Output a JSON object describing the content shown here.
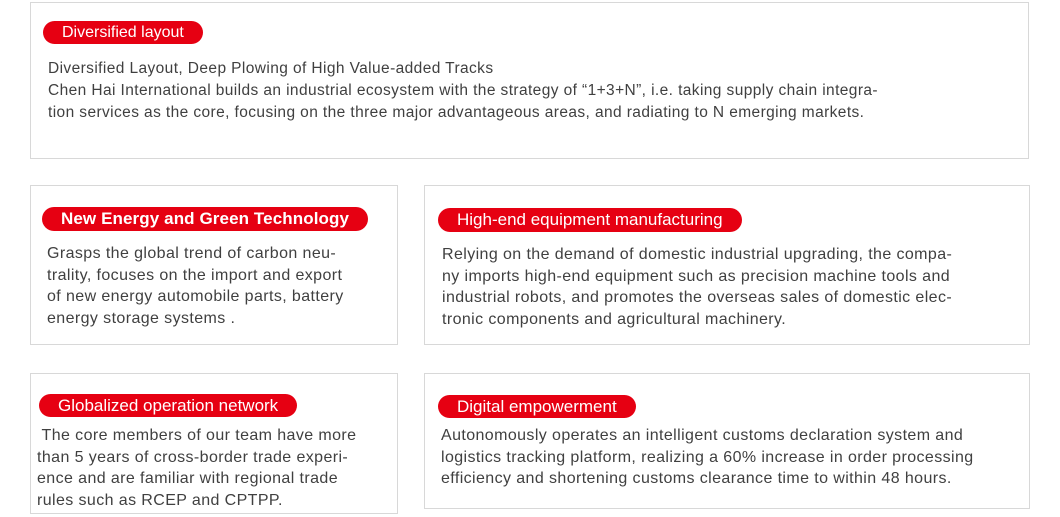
{
  "theme": {
    "accent": "#e60012",
    "text": "#404040",
    "border": "#d8d8d8",
    "bg": "#ffffff"
  },
  "cards": {
    "diversified": {
      "pill": "Diversified layout",
      "lines": [
        "Diversified Layout, Deep Plowing of High Value-added Tracks",
        "Chen Hai International builds an industrial ecosystem with the strategy of “1+3+N”, i.e. taking supply chain integra-",
        "tion services as the core, focusing on the three major advantageous areas, and radiating to N emerging markets."
      ]
    },
    "new_energy": {
      "pill": "New Energy and Green Technology",
      "lines": [
        "Grasps the global trend of carbon neu-",
        "trality, focuses on the import and export",
        "of new energy automobile parts, battery",
        "energy storage systems ."
      ]
    },
    "high_end": {
      "pill": "High-end equipment manufacturing",
      "lines": [
        "Relying on the demand of domestic industrial upgrading, the compa-",
        "ny imports high-end equipment such as precision machine tools and",
        "industrial robots, and promotes the overseas sales of domestic elec-",
        "tronic components and agricultural machinery."
      ]
    },
    "globalized": {
      "pill": "Globalized operation network",
      "lines": [
        " The core members of our team have more",
        "than 5 years of cross-border trade experi-",
        "ence and are familiar with regional trade",
        "rules such as RCEP and CPTPP."
      ]
    },
    "digital": {
      "pill": "Digital empowerment",
      "lines": [
        "Autonomously operates an intelligent customs declaration system and",
        "logistics tracking platform, realizing a 60% increase in order processing",
        "efficiency and shortening customs clearance time to within 48 hours."
      ]
    }
  }
}
